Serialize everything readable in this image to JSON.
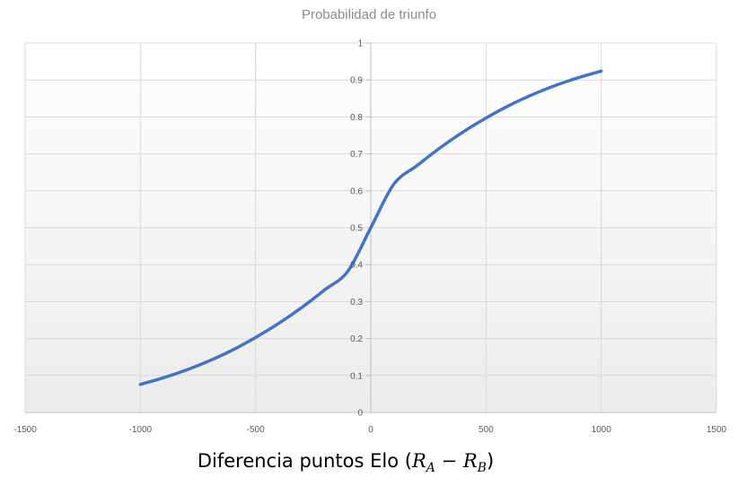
{
  "chart_data": {
    "type": "line",
    "title": "Probabilidad de triunfo",
    "xlabel": "Diferencia puntos Elo (R_A − R_B)",
    "xlabel_parts": {
      "text": "Diferencia puntos Elo (",
      "var1": "R",
      "sub1": "A",
      "op": " − ",
      "var2": "R",
      "sub2": "B",
      "close": ")"
    },
    "xlim": [
      -1500,
      1500
    ],
    "ylim": [
      0,
      1
    ],
    "xticks": [
      "-1500",
      "-1000",
      "-500",
      "0",
      "500",
      "1000",
      "1500"
    ],
    "yticks": [
      "0",
      "0.1",
      "0.2",
      "0.3",
      "0.4",
      "0.5",
      "0.6",
      "0.7",
      "0.8",
      "0.9",
      "1"
    ],
    "grid": true,
    "series": [
      {
        "color": "#4472c4",
        "x": [
          -1000,
          -900,
          -800,
          -700,
          -600,
          -500,
          -400,
          -300,
          -200,
          -100,
          0,
          100,
          200,
          300,
          400,
          500,
          600,
          700,
          800,
          900,
          1000
        ],
        "y": [
          0.076,
          0.094,
          0.115,
          0.14,
          0.169,
          0.203,
          0.241,
          0.284,
          0.332,
          0.382,
          0.5,
          0.618,
          0.668,
          0.716,
          0.759,
          0.797,
          0.831,
          0.86,
          0.885,
          0.906,
          0.924
        ]
      }
    ]
  }
}
